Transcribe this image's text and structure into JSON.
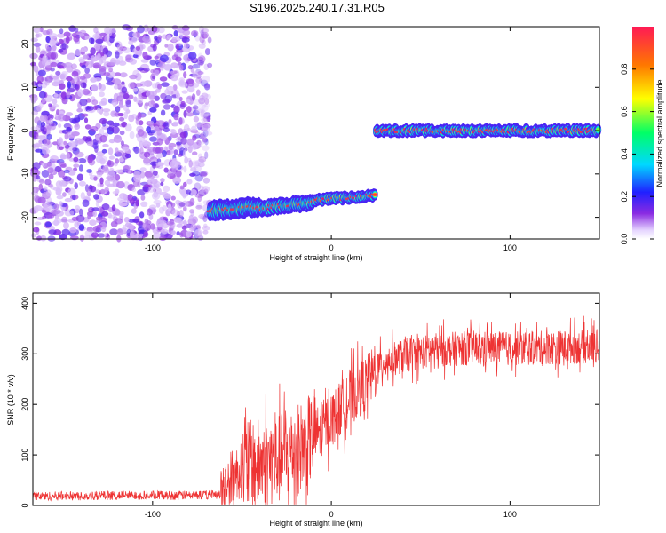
{
  "title": "S196.2025.240.17.31.R05",
  "chart_data": [
    {
      "type": "heatmap",
      "title": "S196.2025.240.17.31.R05",
      "xlabel": "Height of straight line (km)",
      "ylabel": "Frequency (Hz)",
      "xlim": [
        -167,
        150
      ],
      "ylim": [
        -25,
        24
      ],
      "xticks": [
        -100,
        0,
        100
      ],
      "yticks": [
        -20,
        -10,
        0,
        10,
        20
      ],
      "colorbar": {
        "label": "Normalized spectral amplitude",
        "range": [
          0,
          1
        ],
        "ticks": [
          0,
          0.2,
          0.4,
          0.6,
          0.8
        ],
        "tick_labels": [
          "0.0",
          "0.2",
          "0.4",
          "0.6",
          "0.8"
        ]
      },
      "regions": [
        {
          "name": "noise",
          "x": [
            -167,
            -68
          ],
          "y": [
            -25,
            24
          ],
          "amplitude": [
            0.02,
            0.3
          ]
        },
        {
          "name": "signal",
          "segments": [
            {
              "x": [
                -68,
                -40
              ],
              "freq": [
                -18.5,
                -17.5
              ],
              "width_hz": 2.5
            },
            {
              "x": [
                -40,
                -10
              ],
              "freq": [
                -18,
                -16.5
              ],
              "width_hz": 2.0
            },
            {
              "x": [
                -10,
                25
              ],
              "freq": [
                -16,
                -15
              ],
              "width_hz": 1.5
            },
            {
              "x": [
                25,
                150
              ],
              "freq": [
                0,
                0
              ],
              "width_hz": 1.5
            }
          ]
        }
      ]
    },
    {
      "type": "line",
      "xlabel": "Height of straight line (km)",
      "ylabel": "SNR (10 * v/v)",
      "xlim": [
        -167,
        150
      ],
      "ylim": [
        0,
        420
      ],
      "xticks": [
        -100,
        0,
        100
      ],
      "yticks": [
        0,
        100,
        200,
        300,
        400
      ],
      "color": "#ee3333",
      "series": [
        {
          "name": "SNR",
          "x": [
            -167,
            -120,
            -80,
            -62,
            -55,
            -45,
            -30,
            -15,
            0,
            10,
            20,
            30,
            45,
            60,
            80,
            100,
            120,
            150
          ],
          "y": [
            18,
            20,
            20,
            22,
            60,
            80,
            90,
            120,
            170,
            210,
            245,
            285,
            300,
            308,
            312,
            310,
            312,
            315
          ]
        }
      ]
    }
  ]
}
